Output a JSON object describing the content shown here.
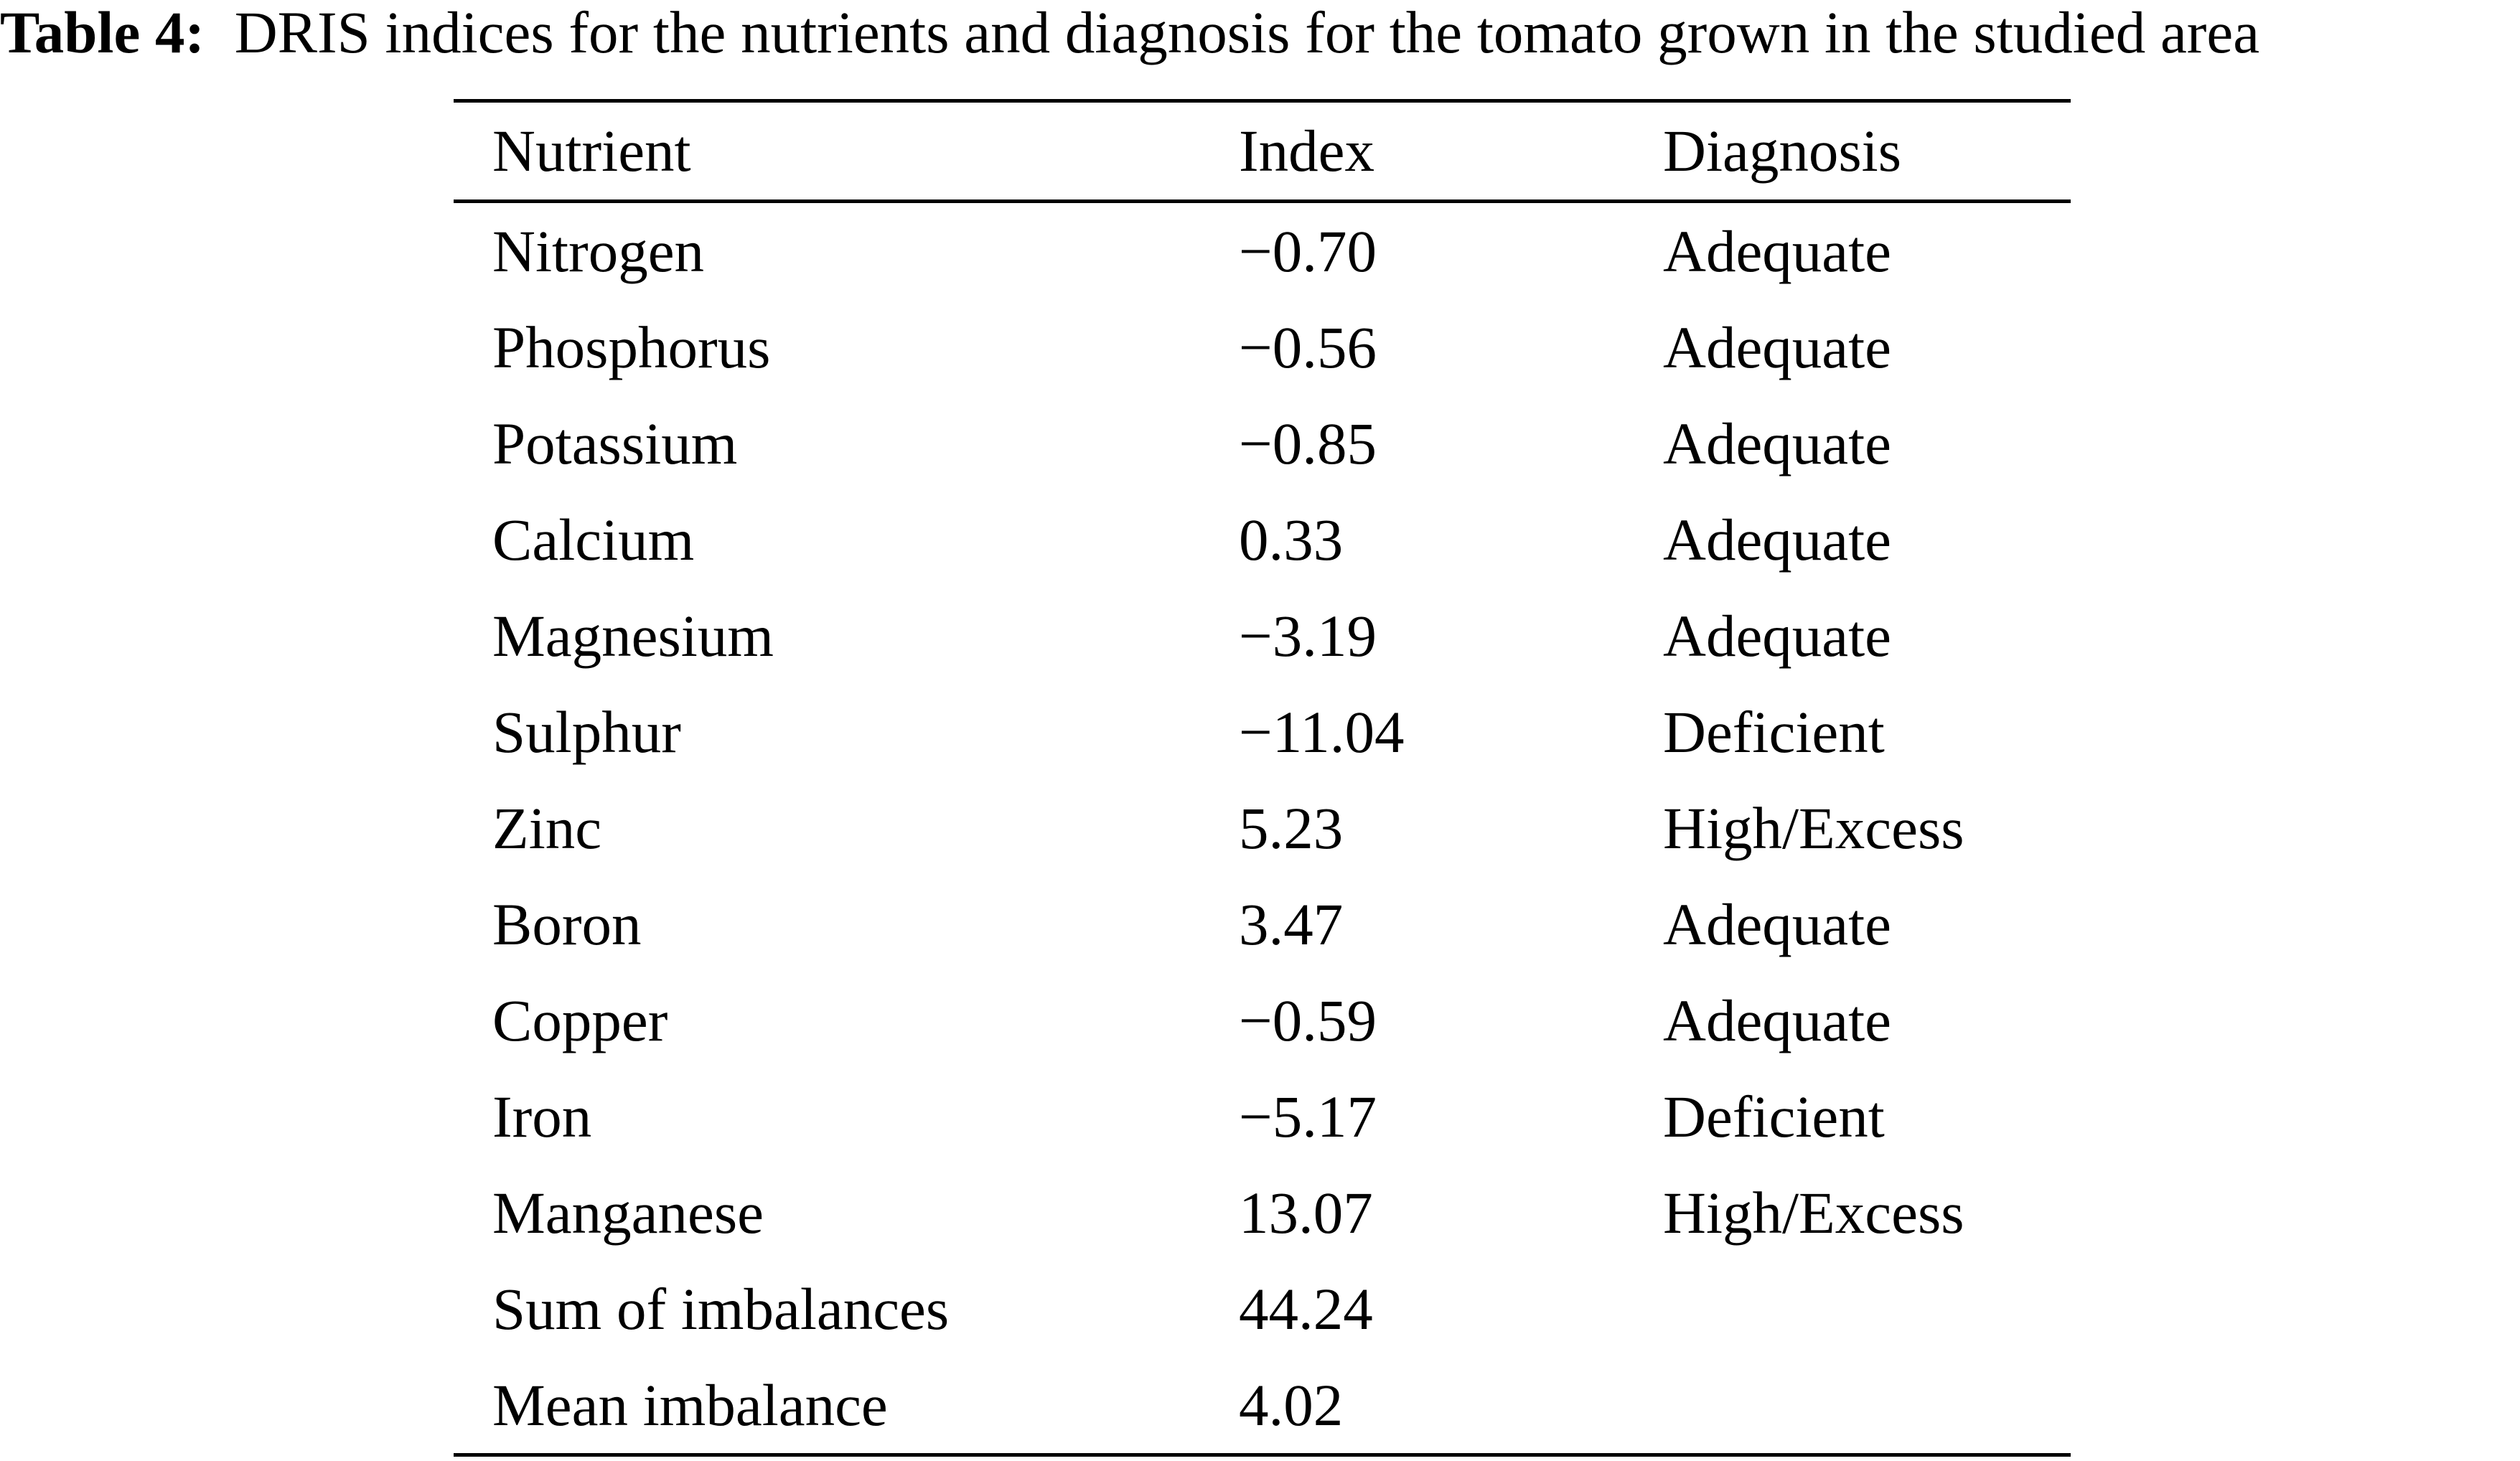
{
  "caption": {
    "label": "Table 4:",
    "text": "DRIS indices for the nutrients and diagnosis for the tomato grown in the studied area"
  },
  "table": {
    "headers": [
      "Nutrient",
      "Index",
      "Diagnosis"
    ],
    "rows": [
      [
        "Nitrogen",
        "−0.70",
        "Adequate"
      ],
      [
        "Phosphorus",
        "−0.56",
        "Adequate"
      ],
      [
        "Potassium",
        "−0.85",
        "Adequate"
      ],
      [
        "Calcium",
        "0.33",
        "Adequate"
      ],
      [
        "Magnesium",
        "−3.19",
        "Adequate"
      ],
      [
        "Sulphur",
        "−11.04",
        "Deficient"
      ],
      [
        "Zinc",
        "5.23",
        "High/Excess"
      ],
      [
        "Boron",
        "3.47",
        "Adequate"
      ],
      [
        "Copper",
        "−0.59",
        "Adequate"
      ],
      [
        "Iron",
        "−5.17",
        "Deficient"
      ],
      [
        "Manganese",
        "13.07",
        "High/Excess"
      ],
      [
        "Sum of imbalances",
        "44.24",
        ""
      ],
      [
        "Mean imbalance",
        "4.02",
        ""
      ]
    ]
  }
}
